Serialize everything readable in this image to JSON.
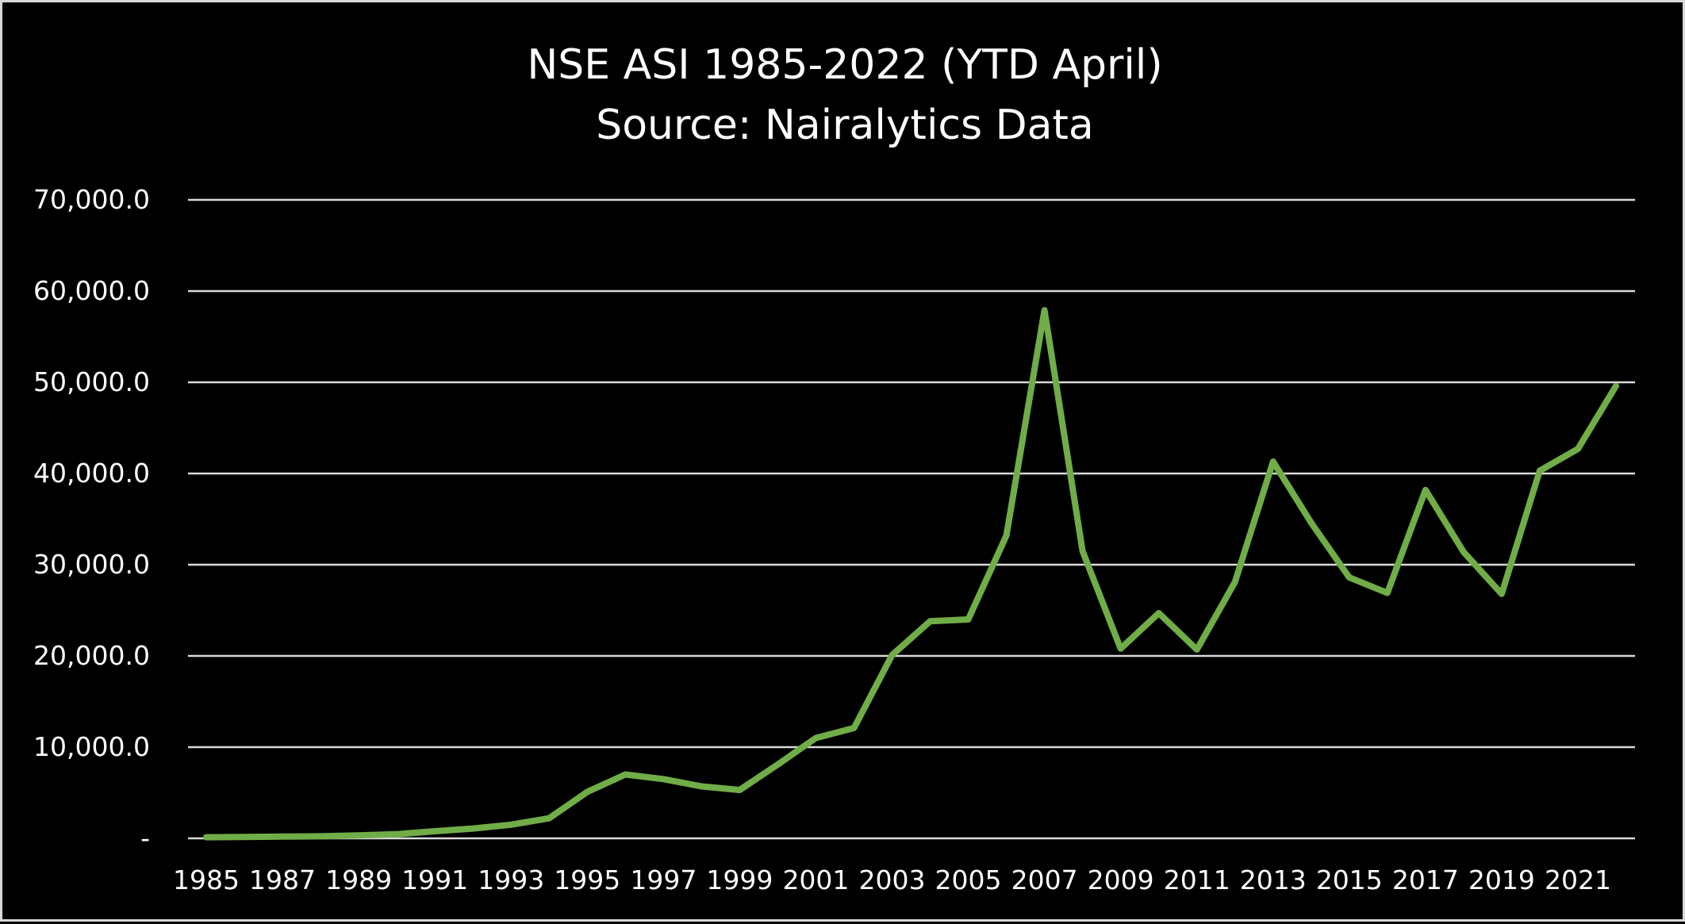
{
  "chart_data": {
    "type": "line",
    "title": "NSE ASI 1985-2022 (YTD April)",
    "subtitle": "Source: Nairalytics Data",
    "xlabel": "",
    "ylabel": "",
    "x": [
      1985,
      1986,
      1987,
      1988,
      1989,
      1990,
      1991,
      1992,
      1993,
      1994,
      1995,
      1996,
      1997,
      1998,
      1999,
      2000,
      2001,
      2002,
      2003,
      2004,
      2005,
      2006,
      2007,
      2008,
      2009,
      2010,
      2011,
      2012,
      2013,
      2014,
      2015,
      2016,
      2017,
      2018,
      2019,
      2020,
      2021,
      2022
    ],
    "series": [
      {
        "color": "#70ad47",
        "values": [
          120,
          160,
          190,
          230,
          320,
          450,
          780,
          1080,
          1500,
          2200,
          5100,
          7000,
          6500,
          5700,
          5300,
          8100,
          11000,
          12100,
          20100,
          23800,
          24000,
          33200,
          57900,
          31500,
          20800,
          24700,
          20700,
          28100,
          41300,
          34600,
          28600,
          26900,
          38200,
          31400,
          26800,
          40300,
          42700,
          49600
        ]
      }
    ],
    "ylim": [
      0,
      70000
    ],
    "yticks": [
      0,
      10000,
      20000,
      30000,
      40000,
      50000,
      60000,
      70000
    ],
    "ytick_labels": [
      "-",
      "10,000.0",
      "20,000.0",
      "30,000.0",
      "40,000.0",
      "50,000.0",
      "60,000.0",
      "70,000.0"
    ],
    "xtick_labels": [
      "1985",
      "1987",
      "1989",
      "1991",
      "1993",
      "1995",
      "1997",
      "1999",
      "2001",
      "2003",
      "2005",
      "2007",
      "2009",
      "2011",
      "2013",
      "2015",
      "2017",
      "2019",
      "2021"
    ],
    "grid": true,
    "legend": "none",
    "background": "#000000",
    "text_color": "#ffffff",
    "grid_color": "#d9d9d9"
  }
}
